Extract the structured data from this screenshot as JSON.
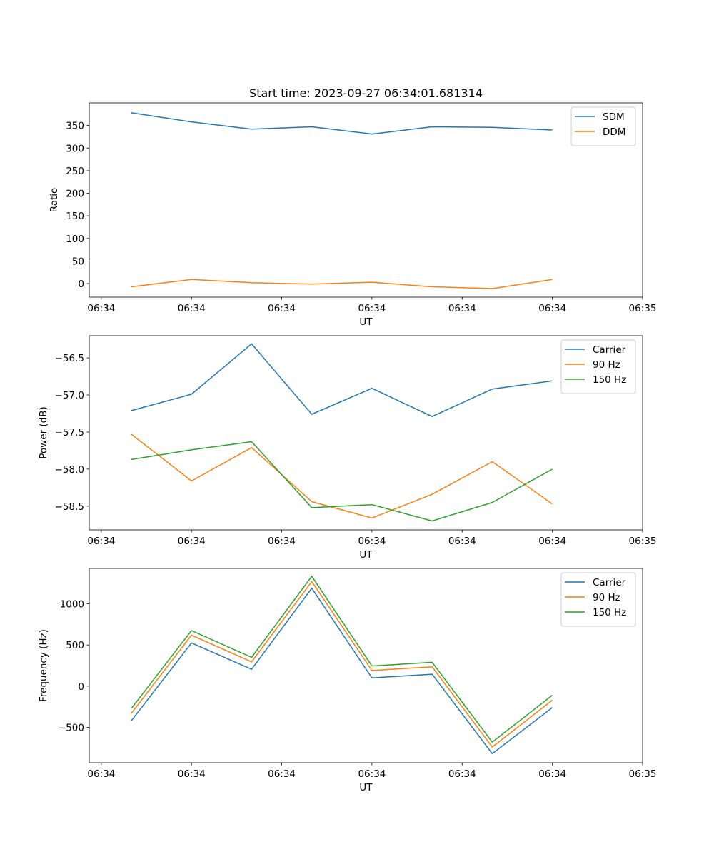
{
  "chart_data": [
    {
      "type": "line",
      "title": "Start time: 2023-09-27 06:34:01.681314",
      "xlabel": "UT",
      "ylabel": "Ratio",
      "x": [
        0,
        1,
        2,
        3,
        4,
        5,
        6,
        7
      ],
      "xlim": [
        -0.7,
        8.5
      ],
      "x_ticks": [
        -0.5,
        1,
        2.5,
        4,
        5.5,
        7,
        8.5
      ],
      "x_tick_labels": [
        "06:34",
        "06:34",
        "06:34",
        "06:34",
        "06:34",
        "06:34",
        "06:35"
      ],
      "ylim": [
        -30,
        400
      ],
      "y_ticks": [
        0,
        50,
        100,
        150,
        200,
        250,
        300,
        350
      ],
      "y_tick_labels": [
        "0",
        "50",
        "100",
        "150",
        "200",
        "250",
        "300",
        "350"
      ],
      "legend": "top-right",
      "series": [
        {
          "name": "SDM",
          "color": "#1f77b4",
          "values": [
            378,
            358,
            342,
            347,
            331,
            347,
            346,
            340
          ]
        },
        {
          "name": "DDM",
          "color": "#ff7f0e",
          "values": [
            -7,
            9,
            2,
            -1,
            3,
            -7,
            -11,
            9
          ]
        }
      ]
    },
    {
      "type": "line",
      "title": "",
      "xlabel": "UT",
      "ylabel": "Power (dB)",
      "x": [
        0,
        1,
        2,
        3,
        4,
        5,
        6,
        7
      ],
      "xlim": [
        -0.7,
        8.5
      ],
      "x_ticks": [
        -0.5,
        1,
        2.5,
        4,
        5.5,
        7,
        8.5
      ],
      "x_tick_labels": [
        "06:34",
        "06:34",
        "06:34",
        "06:34",
        "06:34",
        "06:34",
        "06:35"
      ],
      "ylim": [
        -58.82,
        -56.2
      ],
      "y_ticks": [
        -58.5,
        -58.0,
        -57.5,
        -57.0,
        -56.5
      ],
      "y_tick_labels": [
        "−58.5",
        "−58.0",
        "−57.5",
        "−57.0",
        "−56.5"
      ],
      "legend": "top-right",
      "series": [
        {
          "name": "Carrier",
          "color": "#1f77b4",
          "values": [
            -57.21,
            -56.99,
            -56.31,
            -57.26,
            -56.91,
            -57.29,
            -56.92,
            -56.81
          ]
        },
        {
          "name": "90 Hz",
          "color": "#ff7f0e",
          "values": [
            -57.53,
            -58.16,
            -57.71,
            -58.44,
            -58.66,
            -58.34,
            -57.9,
            -58.47
          ]
        },
        {
          "name": "150 Hz",
          "color": "#2ca02c",
          "values": [
            -57.87,
            -57.74,
            -57.63,
            -58.52,
            -58.48,
            -58.7,
            -58.45,
            -58.0
          ]
        }
      ]
    },
    {
      "type": "line",
      "title": "",
      "xlabel": "UT",
      "ylabel": "Frequency (Hz)",
      "x": [
        0,
        1,
        2,
        3,
        4,
        5,
        6,
        7
      ],
      "xlim": [
        -0.7,
        8.5
      ],
      "x_ticks": [
        -0.5,
        1,
        2.5,
        4,
        5.5,
        7,
        8.5
      ],
      "x_tick_labels": [
        "06:34",
        "06:34",
        "06:34",
        "06:34",
        "06:34",
        "06:34",
        "06:35"
      ],
      "ylim": [
        -930,
        1430
      ],
      "y_ticks": [
        -500,
        0,
        500,
        1000
      ],
      "y_tick_labels": [
        "−500",
        "0",
        "500",
        "1000"
      ],
      "legend": "top-right",
      "series": [
        {
          "name": "Carrier",
          "color": "#1f77b4",
          "values": [
            -420,
            525,
            205,
            1190,
            100,
            145,
            -820,
            -260
          ]
        },
        {
          "name": "90 Hz",
          "color": "#ff7f0e",
          "values": [
            -330,
            620,
            295,
            1270,
            190,
            235,
            -740,
            -170
          ]
        },
        {
          "name": "150 Hz",
          "color": "#2ca02c",
          "values": [
            -270,
            675,
            350,
            1335,
            245,
            290,
            -680,
            -110
          ]
        }
      ]
    }
  ]
}
